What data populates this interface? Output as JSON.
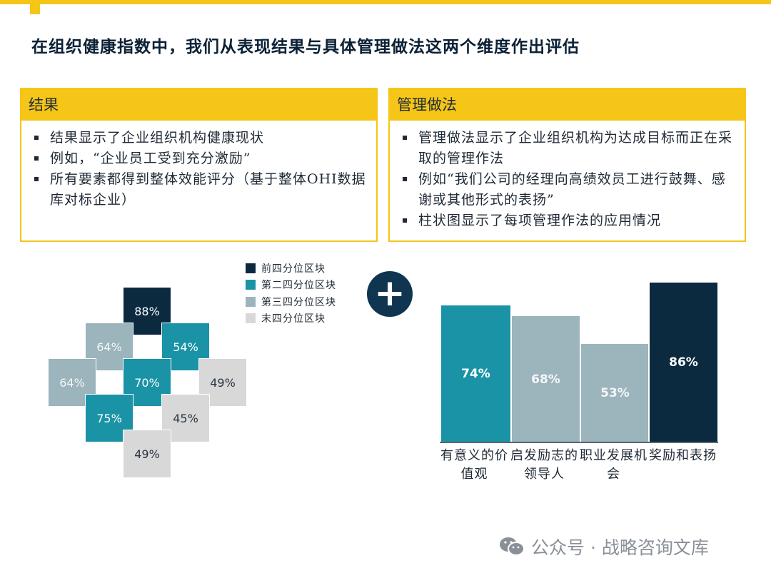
{
  "title": "在组织健康指数中，我们从表现结果与具体管理做法这两个维度作出评估",
  "panels": {
    "left": {
      "heading": "结果",
      "bullets": [
        "结果显示了企业组织机构健康现状",
        "例如，“企业员工受到充分激励”",
        "所有要素都得到整体效能评分（基于整体OHI数据库对标企业）"
      ]
    },
    "right": {
      "heading": "管理做法",
      "bullets": [
        "管理做法显示了企业组织机构为达成目标而正在采取的管理作法",
        "例如“我们公司的经理向高绩效员工进行鼓舞、感谢或其他形式的表扬”",
        "柱状图显示了每项管理作法的应用情况"
      ]
    }
  },
  "colors": {
    "accent": "#f5c518",
    "quartile_1": "#0b2a40",
    "quartile_2": "#1a93a6",
    "quartile_3": "#9cb4bb",
    "quartile_4": "#d8d8d8"
  },
  "legend": [
    {
      "label": "前四分位区块",
      "quartile": 1
    },
    {
      "label": "第二四分位区块",
      "quartile": 2
    },
    {
      "label": "第三四分位区块",
      "quartile": 3
    },
    {
      "label": "末四分位区块",
      "quartile": 4
    }
  ],
  "plus_symbol": "+",
  "tiles": [
    {
      "label": "88%",
      "quartile": 1
    },
    {
      "label": "64%",
      "quartile": 3
    },
    {
      "label": "54%",
      "quartile": 2
    },
    {
      "label": "64%",
      "quartile": 3
    },
    {
      "label": "70%",
      "quartile": 2
    },
    {
      "label": "49%",
      "quartile": 4
    },
    {
      "label": "75%",
      "quartile": 2
    },
    {
      "label": "45%",
      "quartile": 4
    },
    {
      "label": "49%",
      "quartile": 4
    }
  ],
  "chart_data": {
    "type": "bar",
    "categories": [
      "有意义的价值观",
      "启发励志的领导人",
      "职业发展机会",
      "奖励和表扬"
    ],
    "values": [
      74,
      68,
      53,
      86
    ],
    "value_labels": [
      "74%",
      "68%",
      "53%",
      "86%"
    ],
    "quartiles": [
      2,
      3,
      3,
      1
    ],
    "ylim": [
      0,
      100
    ]
  },
  "watermark": {
    "text": "公众号 · 战略咨询文库",
    "icon": "wechat-icon"
  }
}
